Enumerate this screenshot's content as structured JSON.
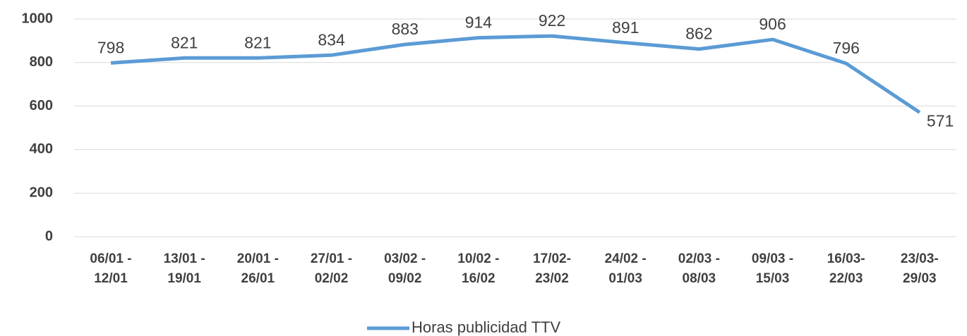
{
  "chart_data": {
    "type": "line",
    "categories": [
      "06/01 -\n12/01",
      "13/01 -\n19/01",
      "20/01 -\n26/01",
      "27/01 -\n02/02",
      "03/02 -\n09/02",
      "10/02 -\n16/02",
      "17/02-\n23/02",
      "24/02 -\n01/03",
      "02/03 -\n08/03",
      "09/03 -\n15/03",
      "16/03-\n22/03",
      "23/03-\n29/03"
    ],
    "series": [
      {
        "name": "Horas publicidad TTV",
        "color": "#5b9bd5",
        "values": [
          798,
          821,
          821,
          834,
          883,
          914,
          922,
          891,
          862,
          906,
          796,
          571
        ]
      }
    ],
    "ylim": [
      0,
      1000
    ],
    "yticks": [
      0,
      200,
      400,
      600,
      800,
      1000
    ],
    "grid": true,
    "legend": "bottom"
  }
}
